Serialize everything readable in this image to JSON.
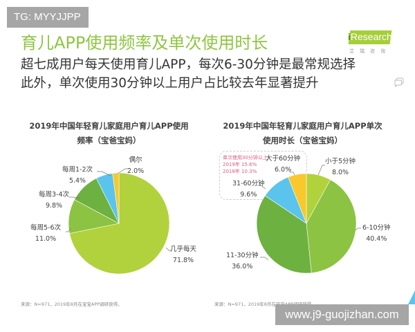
{
  "badge": {
    "text": "TG: MYYJJPP"
  },
  "header": {
    "title": "育儿APP使用频率及单次使用时长",
    "subtitle_line1": "超七成用户每天使用育儿APP，每次6-30分钟是最常规选择",
    "subtitle_line2": "此外，单次使用30分钟以上用户占比较去年显著提升"
  },
  "logo": {
    "prefix": "i",
    "text": "Research",
    "sub": "艾瑞咨询",
    "color": "#a6ce39"
  },
  "icons": {
    "comment": "comment-icon"
  },
  "charts": {
    "left": {
      "title_line1": "2019年中国年轻育儿家庭用户育儿APP使用",
      "title_line2": "频率（宝爸宝妈）",
      "source": "来源：N=971，2019年8月在宝宝APP调研获得。"
    },
    "right": {
      "title_line1": "2019年中国年轻育儿家庭用户育儿APP单次",
      "title_line2": "使用时长（宝爸宝妈）",
      "annotation_line1": "单次使用30分钟以上",
      "annotation_line2": "2019年 15.6%",
      "annotation_line3": "2018年 10.3%",
      "source": "来源：N=971，2019年8月在宝宝APP调研获得。"
    }
  },
  "watermark": {
    "text": "www.j9-guojizhan.com"
  },
  "chart_data": [
    {
      "type": "pie",
      "title": "2019年中国年轻育儿家庭用户育儿APP使用频率（宝爸宝妈）",
      "categories": [
        "几乎每天",
        "每周5-6次",
        "每周3-4次",
        "每周1-2次",
        "偶尔"
      ],
      "values": [
        71.8,
        11.0,
        9.8,
        5.4,
        2.0
      ],
      "labels": [
        "71.8%",
        "11.0%",
        "9.8%",
        "5.4%",
        "2.0%"
      ],
      "colors": [
        "#b1d23c",
        "#8cc342",
        "#6db140",
        "#5bc4ec",
        "#f8c82d"
      ],
      "start_angle": "12 o'clock, clockwise",
      "source": "来源：N=971，2019年8月在宝宝APP调研获得。"
    },
    {
      "type": "pie",
      "title": "2019年中国年轻育儿家庭用户育儿APP单次使用时长（宝爸宝妈）",
      "categories": [
        "小于5分钟",
        "6-10分钟",
        "11-30分钟",
        "31-60分钟",
        "大于60分钟"
      ],
      "values": [
        8.0,
        40.4,
        36.0,
        9.6,
        6.0
      ],
      "labels": [
        "8.0%",
        "40.4%",
        "36.0%",
        "9.6%",
        "6.0%"
      ],
      "colors": [
        "#b1d23c",
        "#8cc342",
        "#6db140",
        "#5bc4ec",
        "#f8c82d"
      ],
      "annotations": [
        "单次使用30分钟以上",
        "2019年 15.6%",
        "2018年 10.3%"
      ],
      "start_angle": "12 o'clock, clockwise",
      "source": "来源：N=971，2019年8月在宝宝APP调研获得。"
    }
  ]
}
